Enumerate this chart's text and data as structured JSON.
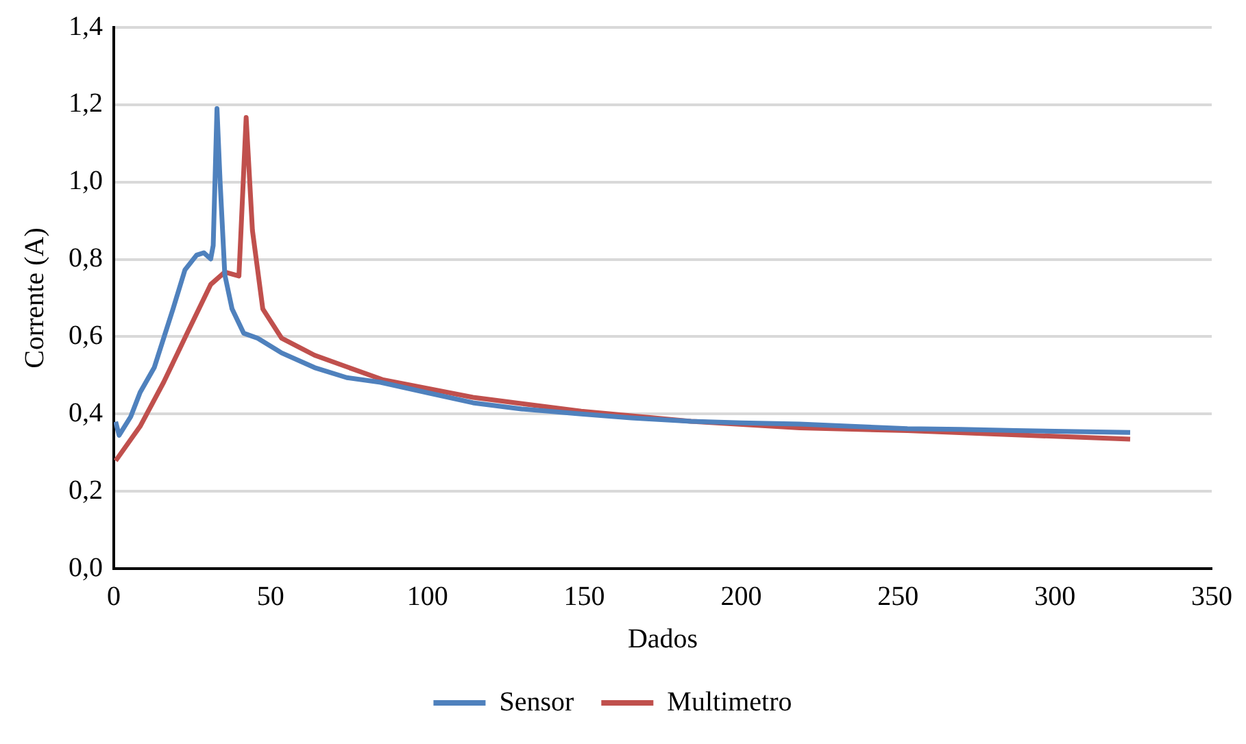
{
  "chart_data": {
    "type": "line",
    "xlabel": "Dados",
    "ylabel": "Corrente (A)",
    "xlim": [
      0,
      350
    ],
    "xticks": [
      0,
      50,
      100,
      150,
      200,
      250,
      300,
      350
    ],
    "ylim": [
      0,
      1.4
    ],
    "yticks": [
      {
        "value": 0,
        "label": "0,0"
      },
      {
        "value": 0.2,
        "label": "0,2"
      },
      {
        "value": 0.4,
        "label": "0,4"
      },
      {
        "value": 0.6,
        "label": "0,6"
      },
      {
        "value": 0.8,
        "label": "0,8"
      },
      {
        "value": 1,
        "label": "1,0"
      },
      {
        "value": 1.2,
        "label": "1,2"
      },
      {
        "value": 1.4,
        "label": "1,4"
      }
    ],
    "grid": "y",
    "legend": "bottom",
    "marker": "none",
    "line_style": "solid",
    "series": [
      {
        "name": "Sensor",
        "color": "#4f81bd",
        "x": [
          0.6,
          1.7,
          5.4,
          8.4,
          12.9,
          15.9,
          18.9,
          22.7,
          26.4,
          28.7,
          30.9,
          31.7,
          32.9,
          33.9,
          35.4,
          37.7,
          41.4,
          45.9,
          53.5,
          64,
          74.3,
          85,
          100,
          114.5,
          130,
          149,
          165,
          184,
          200,
          218.6,
          235,
          253,
          270,
          287.6,
          310,
          324
        ],
        "values": [
          0.38,
          0.345,
          0.393,
          0.456,
          0.52,
          0.596,
          0.672,
          0.773,
          0.811,
          0.817,
          0.801,
          0.836,
          1.19,
          1.0,
          0.76,
          0.672,
          0.609,
          0.596,
          0.558,
          0.52,
          0.494,
          0.482,
          0.455,
          0.429,
          0.413,
          0.4,
          0.39,
          0.381,
          0.377,
          0.374,
          0.368,
          0.362,
          0.36,
          0.357,
          0.354,
          0.352
        ]
      },
      {
        "name": "Multimetro",
        "color": "#c0504d",
        "x": [
          0.6,
          8.4,
          15.9,
          23.4,
          30.9,
          35.4,
          39.9,
          42.2,
          44.2,
          47.5,
          53.5,
          64,
          85.6,
          114.5,
          149,
          184,
          218.6,
          253,
          287.6,
          324
        ],
        "values": [
          0.279,
          0.368,
          0.482,
          0.609,
          0.735,
          0.767,
          0.757,
          1.167,
          0.875,
          0.672,
          0.596,
          0.552,
          0.489,
          0.443,
          0.407,
          0.381,
          0.364,
          0.357,
          0.346,
          0.335
        ]
      }
    ]
  }
}
